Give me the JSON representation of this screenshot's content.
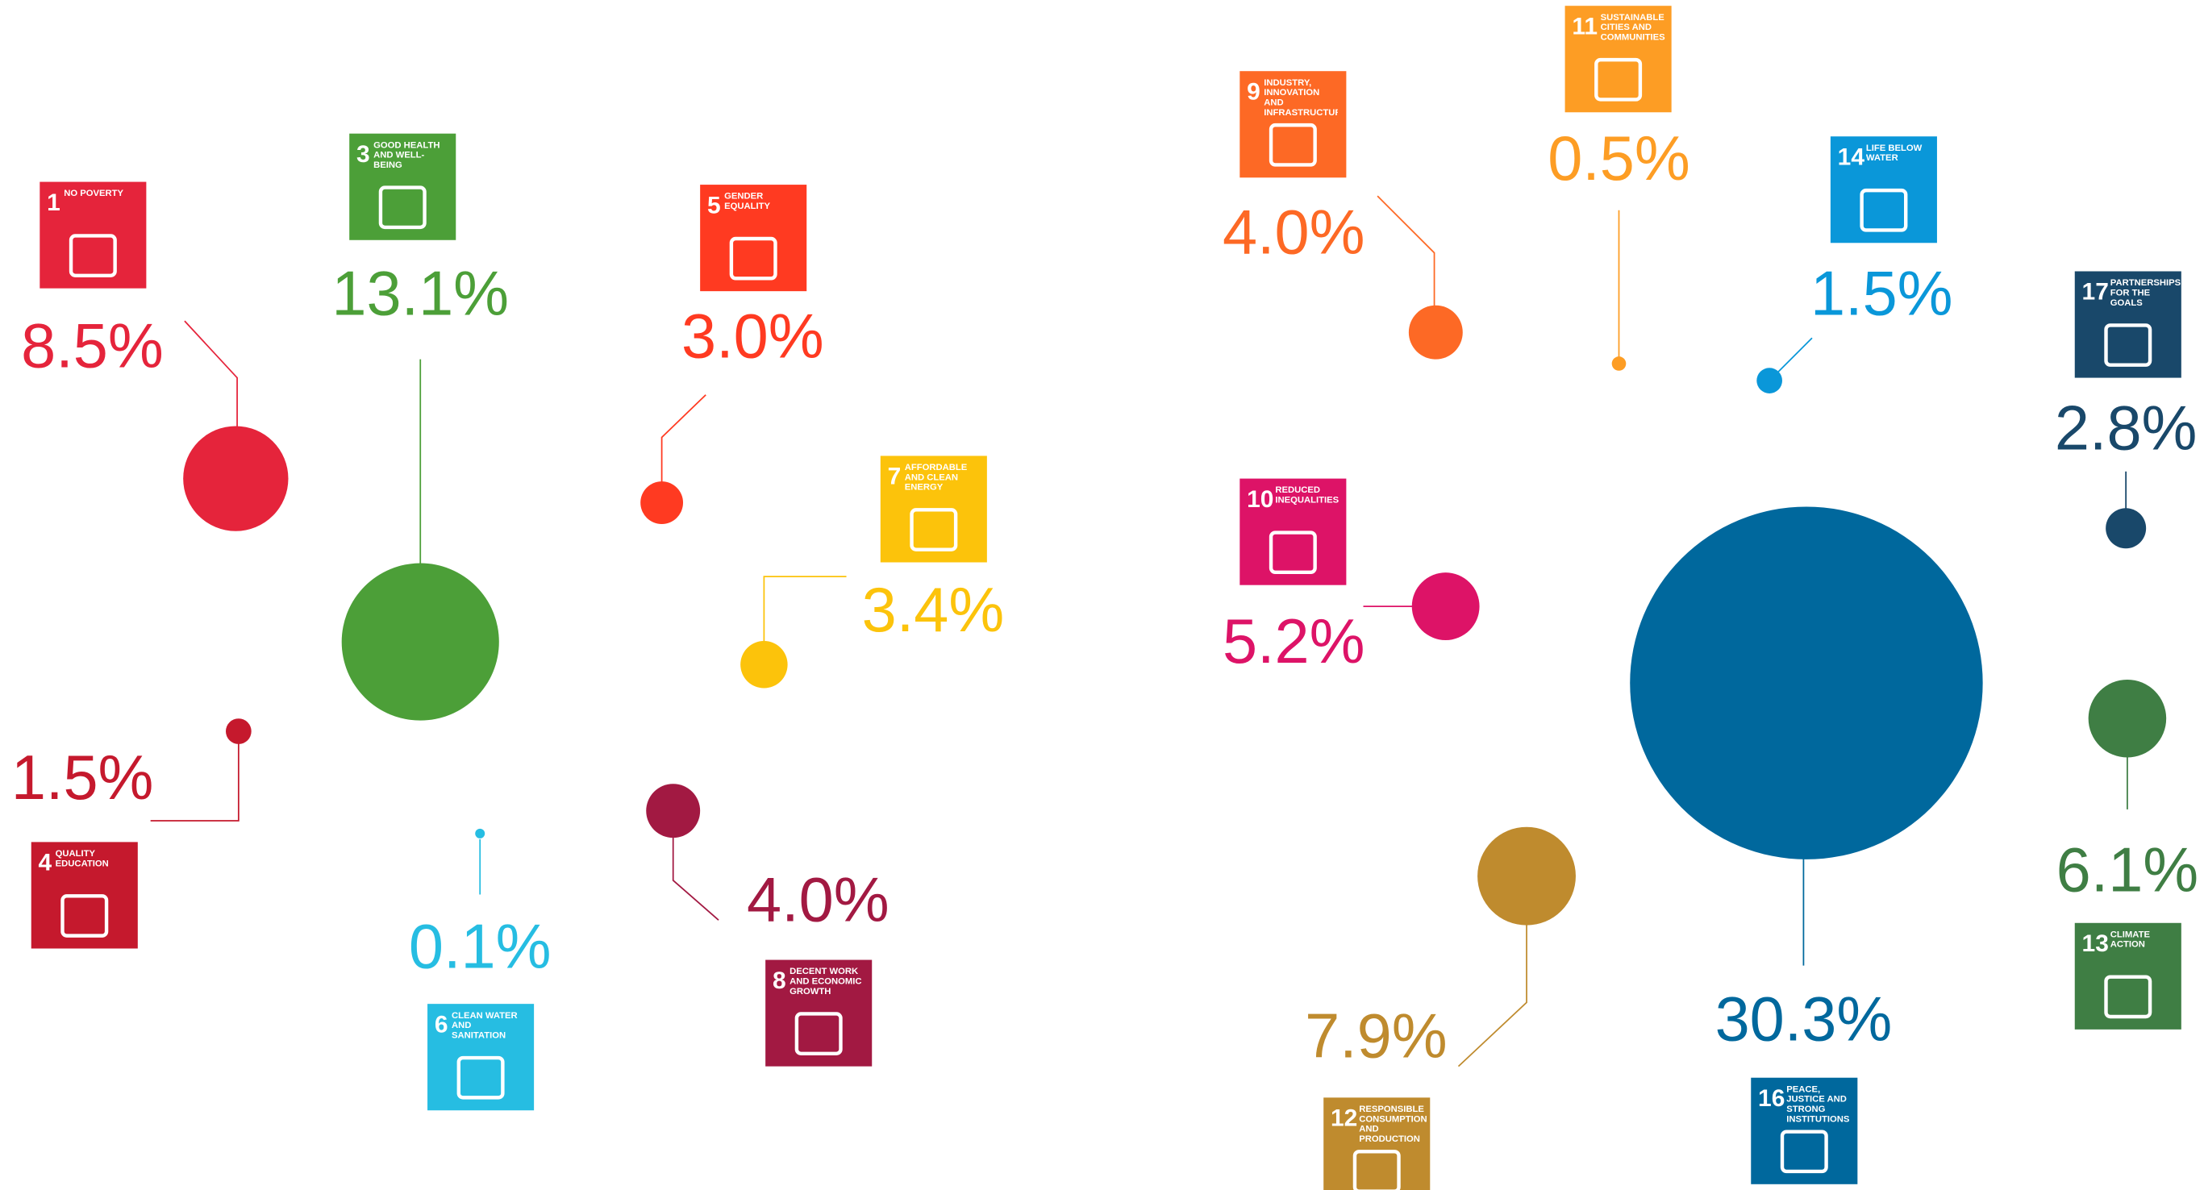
{
  "chart_data": {
    "type": "bubble",
    "numbers": [
      "1",
      "3",
      "4",
      "5",
      "6",
      "7",
      "8",
      "9",
      "10",
      "11",
      "12",
      "13",
      "14",
      "16",
      "17"
    ],
    "categories": [
      "NO POVERTY",
      "GOOD HEALTH AND WELL-BEING",
      "QUALITY EDUCATION",
      "GENDER EQUALITY",
      "CLEAN WATER AND SANITATION",
      "AFFORDABLE AND CLEAN ENERGY",
      "DECENT WORK AND ECONOMIC GROWTH",
      "INDUSTRY, INNOVATION AND INFRASTRUCTURE",
      "REDUCED INEQUALITIES",
      "SUSTAINABLE CITIES AND COMMUNITIES",
      "RESPONSIBLE CONSUMPTION AND PRODUCTION",
      "CLIMATE ACTION",
      "LIFE BELOW WATER",
      "PEACE, JUSTICE AND STRONG INSTITUTIONS",
      "PARTNERSHIPS FOR THE GOALS"
    ],
    "values": [
      8.5,
      13.1,
      1.5,
      3.0,
      0.1,
      3.4,
      4.0,
      4.0,
      5.2,
      0.5,
      7.9,
      6.1,
      1.5,
      30.3,
      2.8
    ],
    "value_labels": [
      "8.5%",
      "13.1%",
      "1.5%",
      "3.0%",
      "0.1%",
      "3.4%",
      "4.0%",
      "4.0%",
      "5.2%",
      "0.5%",
      "7.9%",
      "6.1%",
      "1.5%",
      "30.3%",
      "2.8%"
    ],
    "colors": [
      "#e5243b",
      "#4c9f38",
      "#c5192d",
      "#ff3a21",
      "#26bde2",
      "#fcc30b",
      "#a21942",
      "#fd6925",
      "#dd1367",
      "#fd9d24",
      "#bf8b2e",
      "#3f7e44",
      "#0a97d9",
      "#00689d",
      "#19486a"
    ]
  }
}
